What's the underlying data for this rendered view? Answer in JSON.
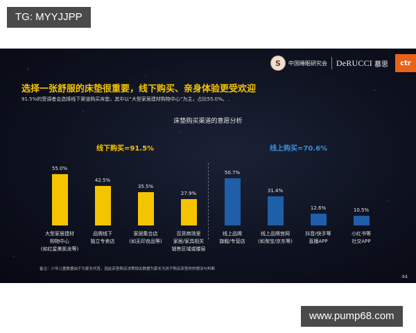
{
  "overlay": {
    "top_badge": "TG: MYYJJPP",
    "bottom_watermark": "www.pump68.com"
  },
  "slide": {
    "logos": {
      "org_cn": "中国睡眠研究会",
      "brand_en": "DeRUCCI",
      "brand_cn": "慕思",
      "ctr": "ctr",
      "circle_glyph": "S"
    },
    "headline": "选择一张舒服的床垫很重要，线下购买、亲身体验更受欢迎",
    "subline": "91.5%的受调者会选择线下渠道购买床垫，其中以“大型家居建材购物中心”为主，占比55.0%。",
    "chart_title": "床垫购买渠道的意愿分析",
    "offline_label": "线下购买=91.5%",
    "online_label": "线上购买=70.6%",
    "footnote": "备注：少年儿童数据由于为家长代答，因此床垫购买决策相关数据为家长为孩子购买床垫时的想法与判断",
    "page_number": "44",
    "colors": {
      "offline": "#f5c400",
      "online": "#1f5ea8",
      "headline": "#f5c400",
      "online_label": "#3a8fd8"
    }
  },
  "chart_data": {
    "type": "bar",
    "title": "床垫购买渠道的意愿分析",
    "xlabel": "",
    "ylabel": "",
    "ylim": [
      0,
      60
    ],
    "grid": false,
    "legend": "none",
    "categories": [
      "大型家居建材购物中心(如红星美凯龙等)",
      "品牌线下独立专卖店",
      "家居集合店(如无印良品等)",
      "百货商场里家居/家具相关销售区域或楼层",
      "线上品牌旗舰/专营店",
      "线上品牌官网(如淘宝/京东等)",
      "抖音/快手等直播APP",
      "小红书等社交APP"
    ],
    "category_lines": [
      [
        "大型家居建材",
        "购物中心",
        "(如红星美凯龙等)"
      ],
      [
        "品牌线下",
        "独立专卖店"
      ],
      [
        "家居集合店",
        "(如无印良品等)"
      ],
      [
        "百货商场里",
        "家居/家具相关",
        "销售区域或楼层"
      ],
      [
        "线上品牌",
        "旗舰/专营店"
      ],
      [
        "线上品牌官网",
        "(如淘宝/京东等)"
      ],
      [
        "抖音/快手等",
        "直播APP"
      ],
      [
        "小红书等",
        "社交APP"
      ]
    ],
    "values": [
      55.0,
      42.5,
      35.5,
      27.9,
      50.7,
      31.4,
      12.6,
      10.5
    ],
    "value_labels": [
      "55.0%",
      "42.5%",
      "35.5%",
      "27.9%",
      "50.7%",
      "31.4%",
      "12.6%",
      "10.5%"
    ],
    "groups": [
      {
        "name": "线下购买=91.5%",
        "indices": [
          0,
          1,
          2,
          3
        ],
        "color": "#f5c400"
      },
      {
        "name": "线上购买=70.6%",
        "indices": [
          4,
          5,
          6,
          7
        ],
        "color": "#1f5ea8"
      }
    ],
    "annotations": [
      "线下购买=91.5%",
      "线上购买=70.6%"
    ]
  }
}
